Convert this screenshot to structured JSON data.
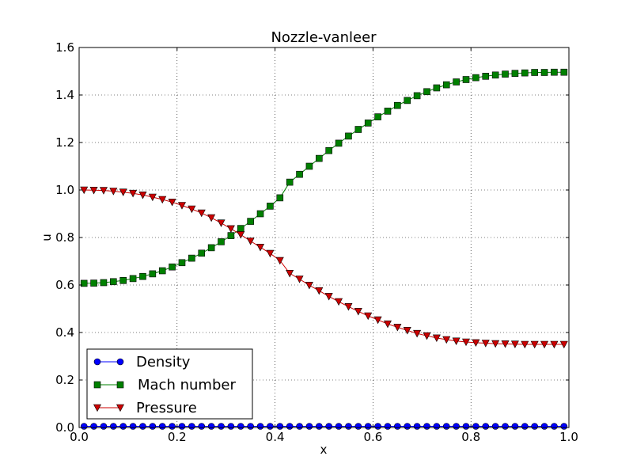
{
  "chart_data": {
    "type": "line",
    "title": "Nozzle-vanleer",
    "xlabel": "x",
    "ylabel": "u",
    "xlim": [
      0.0,
      1.0
    ],
    "ylim": [
      0.0,
      1.6
    ],
    "xticks": [
      "0.0",
      "0.2",
      "0.4",
      "0.6",
      "0.8",
      "1.0"
    ],
    "yticks": [
      "0.0",
      "0.2",
      "0.4",
      "0.6",
      "0.8",
      "1.0",
      "1.2",
      "1.4",
      "1.6"
    ],
    "grid": true,
    "legend_position": "lower-left",
    "x": [
      0.01,
      0.03,
      0.05,
      0.07,
      0.09,
      0.11,
      0.13,
      0.15,
      0.17,
      0.19,
      0.21,
      0.23,
      0.25,
      0.27,
      0.29,
      0.31,
      0.33,
      0.35,
      0.37,
      0.39,
      0.41,
      0.43,
      0.45,
      0.47,
      0.49,
      0.51,
      0.53,
      0.55,
      0.57,
      0.59,
      0.61,
      0.63,
      0.65,
      0.67,
      0.69,
      0.71,
      0.73,
      0.75,
      0.77,
      0.79,
      0.81,
      0.83,
      0.85,
      0.87,
      0.89,
      0.91,
      0.93,
      0.95,
      0.97,
      0.99
    ],
    "series": [
      {
        "name": "Density",
        "color": "#0000ff",
        "marker": "circle",
        "values": [
          0.005,
          0.005,
          0.005,
          0.005,
          0.005,
          0.005,
          0.005,
          0.005,
          0.005,
          0.005,
          0.005,
          0.005,
          0.005,
          0.005,
          0.005,
          0.005,
          0.005,
          0.005,
          0.005,
          0.005,
          0.005,
          0.005,
          0.005,
          0.005,
          0.005,
          0.005,
          0.005,
          0.005,
          0.005,
          0.005,
          0.005,
          0.005,
          0.005,
          0.005,
          0.005,
          0.005,
          0.005,
          0.005,
          0.005,
          0.005,
          0.005,
          0.005,
          0.005,
          0.005,
          0.005,
          0.005,
          0.005,
          0.005,
          0.005,
          0.005
        ]
      },
      {
        "name": "Mach number",
        "color": "#008000",
        "marker": "square",
        "values": [
          0.607,
          0.608,
          0.61,
          0.614,
          0.619,
          0.627,
          0.636,
          0.647,
          0.66,
          0.676,
          0.694,
          0.713,
          0.734,
          0.757,
          0.782,
          0.808,
          0.838,
          0.868,
          0.9,
          0.932,
          0.967,
          1.033,
          1.066,
          1.1,
          1.133,
          1.166,
          1.197,
          1.227,
          1.255,
          1.282,
          1.308,
          1.332,
          1.356,
          1.377,
          1.397,
          1.414,
          1.43,
          1.443,
          1.455,
          1.465,
          1.473,
          1.479,
          1.484,
          1.488,
          1.491,
          1.493,
          1.495,
          1.495,
          1.496,
          1.496
        ]
      },
      {
        "name": "Pressure",
        "color": "#cc0000",
        "marker": "triangle-down",
        "values": [
          1.0,
          0.999,
          0.998,
          0.995,
          0.991,
          0.986,
          0.979,
          0.97,
          0.96,
          0.949,
          0.935,
          0.92,
          0.903,
          0.883,
          0.861,
          0.837,
          0.812,
          0.785,
          0.759,
          0.733,
          0.703,
          0.649,
          0.625,
          0.599,
          0.576,
          0.552,
          0.53,
          0.509,
          0.489,
          0.47,
          0.453,
          0.436,
          0.422,
          0.409,
          0.396,
          0.386,
          0.377,
          0.37,
          0.364,
          0.36,
          0.357,
          0.355,
          0.353,
          0.352,
          0.351,
          0.35,
          0.35,
          0.35,
          0.35,
          0.35
        ]
      }
    ]
  }
}
